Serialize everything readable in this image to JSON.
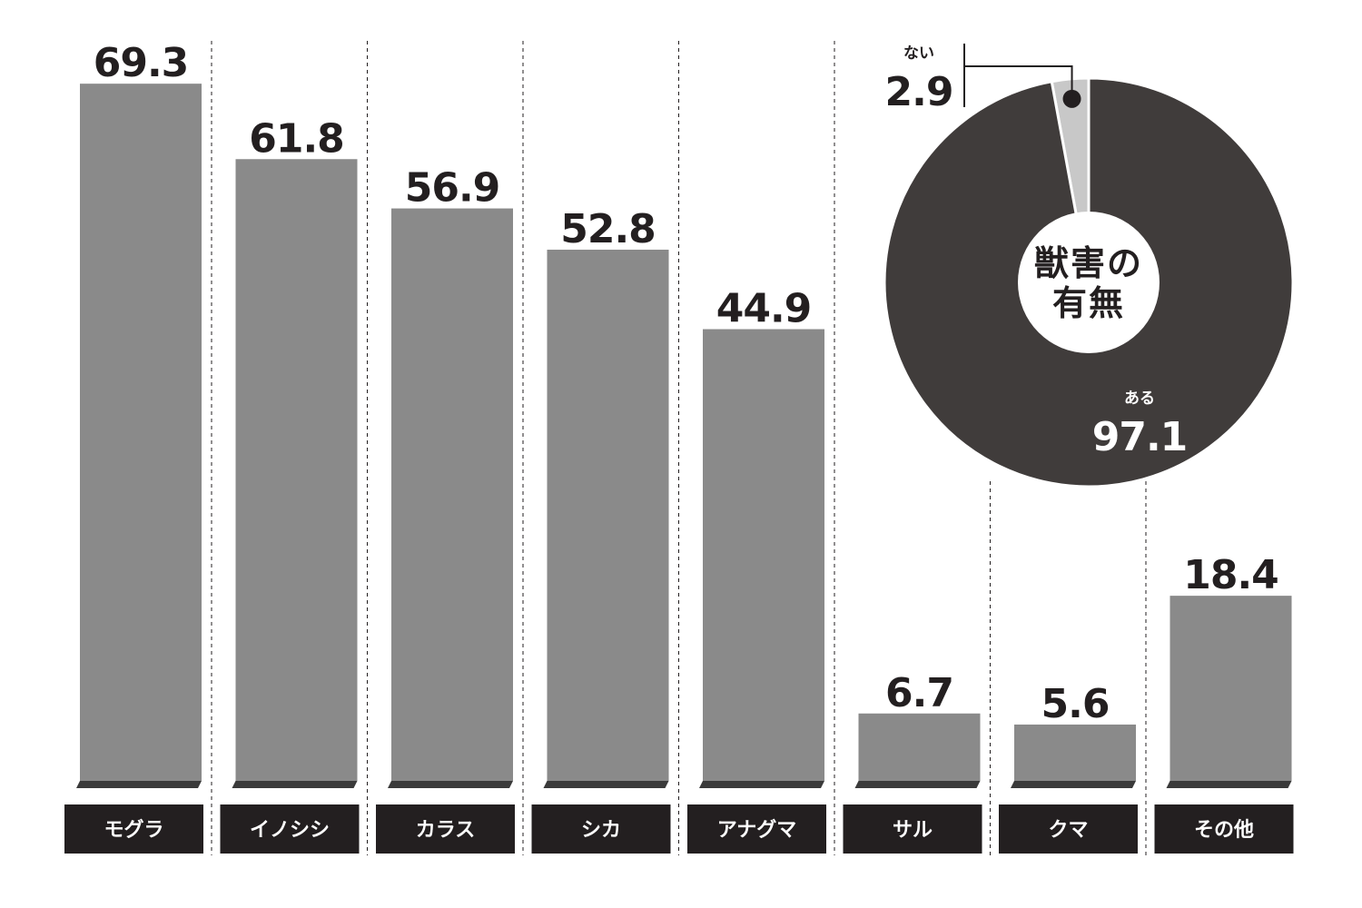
{
  "chart_data": [
    {
      "type": "bar",
      "categories": [
        "モグラ",
        "イノシシ",
        "カラス",
        "シカ",
        "アナグマ",
        "サル",
        "クマ",
        "その他"
      ],
      "values": [
        69.3,
        61.8,
        56.9,
        52.8,
        44.9,
        6.7,
        5.6,
        18.4
      ],
      "color": "#8a8a8a"
    },
    {
      "type": "pie",
      "title": "獣害の有無",
      "categories": [
        "ない",
        "ある"
      ],
      "values": [
        2.9,
        97.1
      ],
      "colors": [
        "#c8c8c8",
        "#403c3b"
      ]
    }
  ]
}
